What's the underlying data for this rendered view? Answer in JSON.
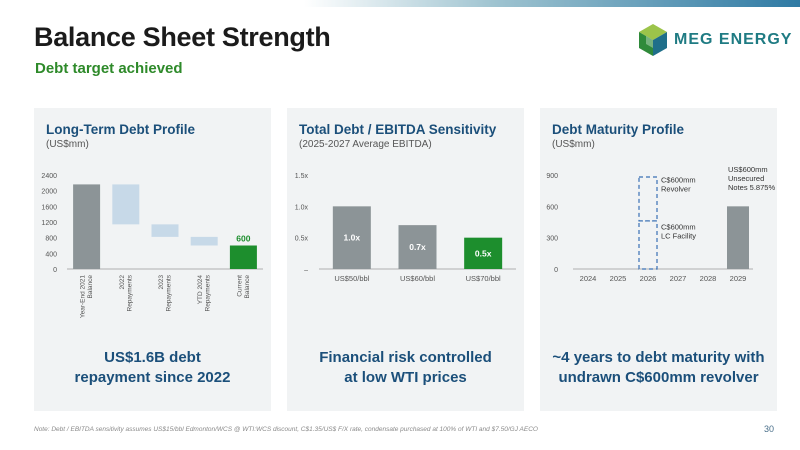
{
  "header": {
    "title": "Balance Sheet Strength",
    "subtitle": "Debt target achieved",
    "logo_text": "MEG ENERGY",
    "brand_green": "#2e8a2a",
    "brand_blue": "#1b4f7a"
  },
  "panels": [
    {
      "title": "Long-Term Debt Profile",
      "subtitle": "(US$mm)",
      "footer": [
        "US$1.6B debt",
        "repayment since 2022"
      ]
    },
    {
      "title": "Total Debt / EBITDA Sensitivity",
      "subtitle": "(2025-2027 Average EBITDA)",
      "footer": [
        "Financial risk controlled",
        "at low WTI prices"
      ]
    },
    {
      "title": "Debt Maturity Profile",
      "subtitle": "(US$mm)",
      "footer": [
        "~4 years to debt maturity with",
        "undrawn C$600mm revolver"
      ]
    }
  ],
  "chart_data": [
    {
      "type": "bar",
      "subtype": "waterfall",
      "categories": [
        "Year-End 2021 Balance",
        "2022 Repayments",
        "2023 Repayments",
        "YTD 2024 Repayments",
        "Current Balance"
      ],
      "y_ticks": [
        "0",
        "400",
        "800",
        "1200",
        "1600",
        "2000",
        "2400"
      ],
      "ylim": [
        0,
        2400
      ],
      "bars": [
        {
          "start": 0,
          "end": 2160,
          "kind": "total",
          "color": "#8c9497"
        },
        {
          "start": 2160,
          "end": 1140,
          "kind": "decrease",
          "color": "#c7d9e8"
        },
        {
          "start": 1140,
          "end": 820,
          "kind": "decrease",
          "color": "#c7d9e8"
        },
        {
          "start": 820,
          "end": 600,
          "kind": "decrease",
          "color": "#c7d9e8"
        },
        {
          "start": 0,
          "end": 600,
          "kind": "total",
          "color": "#1d8e2d"
        }
      ],
      "data_labels": {
        "4": "600"
      }
    },
    {
      "type": "bar",
      "categories": [
        "US$50/bbl",
        "US$60/bbl",
        "US$70/bbl"
      ],
      "values": [
        1.0,
        0.7,
        0.5
      ],
      "value_labels": [
        "1.0x",
        "0.7x",
        "0.5x"
      ],
      "colors": [
        "#8c9497",
        "#8c9497",
        "#1d8e2d"
      ],
      "y_ticks": [
        "–",
        "0.5x",
        "1.0x",
        "1.5x"
      ],
      "ylim": [
        0,
        1.5
      ]
    },
    {
      "type": "bar",
      "categories": [
        "2024",
        "2025",
        "2026",
        "2027",
        "2028",
        "2029"
      ],
      "values": [
        0,
        0,
        0,
        0,
        0,
        600
      ],
      "colors": [
        "#8c9497"
      ],
      "y_ticks": [
        "0",
        "300",
        "600",
        "900"
      ],
      "ylim": [
        0,
        900
      ],
      "annotations": [
        {
          "text": [
            "US$600mm",
            "Unsecured",
            "Notes 5.875%"
          ],
          "category": "2029"
        },
        {
          "text": [
            "C$600mm",
            "Revolver"
          ],
          "category": "2026",
          "style": "dashed-box-upper"
        },
        {
          "text": [
            "C$600mm",
            "LC Facility"
          ],
          "category": "2026",
          "style": "dashed-box-lower"
        }
      ]
    }
  ],
  "footnote": "Note: Debt / EBITDA sensitivity assumes US$15/bbl Edmonton/WCS @ WTI:WCS discount, C$1.35/US$ F/X rate, condensate purchased at 100% of WTI and $7.50/GJ AECO",
  "page_number": "30"
}
